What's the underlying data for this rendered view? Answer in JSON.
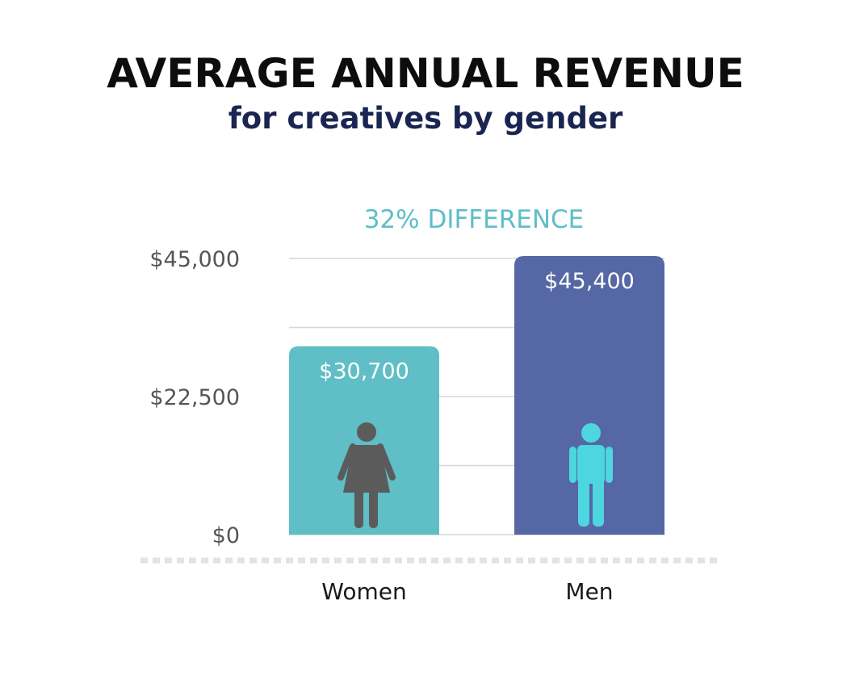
{
  "title": "AVERAGE ANNUAL REVENUE",
  "subtitle": "for creatives by gender",
  "chart_data": {
    "type": "bar",
    "title": "AVERAGE ANNUAL REVENUE",
    "subtitle": "for creatives by gender",
    "annotation": "32% DIFFERENCE",
    "categories": [
      "Women",
      "Men"
    ],
    "values": [
      30700,
      45400
    ],
    "value_labels": [
      "$30,700",
      "$45,400"
    ],
    "bar_colors": [
      "#5fbec6",
      "#5667a5"
    ],
    "icons": [
      "woman-icon",
      "man-icon"
    ],
    "icon_colors": [
      "#5b5b5b",
      "#4dd6e0"
    ],
    "ylim": [
      0,
      45400
    ],
    "yticks": [
      0,
      22500,
      45000
    ],
    "ytick_labels": [
      "$0",
      "$22,500",
      "$45,000"
    ],
    "grid": true,
    "grid_color": "#d6d6d6",
    "annotation_color": "#5fbec6",
    "xlabel": "",
    "ylabel": ""
  }
}
